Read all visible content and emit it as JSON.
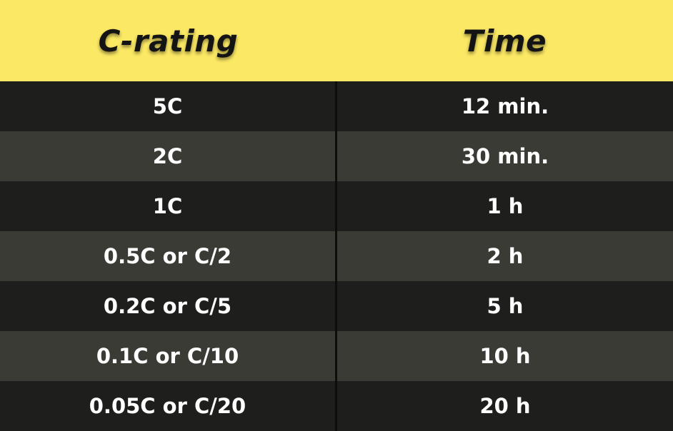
{
  "table": {
    "headers": {
      "c_rating": "C-rating",
      "time": "Time"
    },
    "rows": [
      {
        "c_rating": "5C",
        "time": "12 min."
      },
      {
        "c_rating": "2C",
        "time": "30 min."
      },
      {
        "c_rating": "1C",
        "time": "1 h"
      },
      {
        "c_rating": "0.5C or C/2",
        "time": "2 h"
      },
      {
        "c_rating": "0.2C or C/5",
        "time": "5 h"
      },
      {
        "c_rating": "0.1C or C/10",
        "time": "10 h"
      },
      {
        "c_rating": "0.05C or C/20",
        "time": "20 h"
      }
    ]
  },
  "colors": {
    "header_bg": "#fbe864",
    "row_dark": "#1e1e1c",
    "row_light": "#3b3b35",
    "text": "#ffffff"
  }
}
